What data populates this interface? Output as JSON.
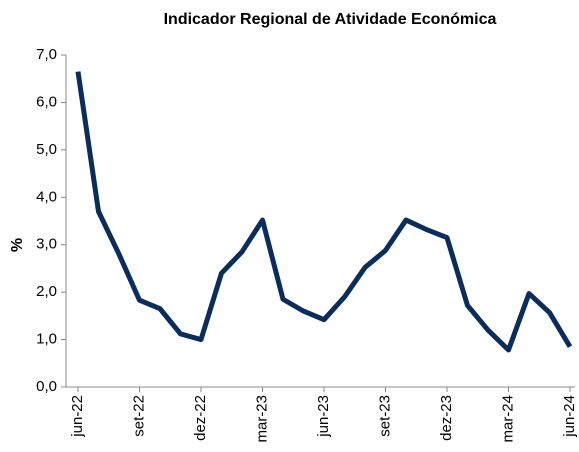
{
  "chart_data": {
    "type": "line",
    "title": "Indicador Regional de Atividade Económica",
    "y_label": "%",
    "categories": [
      "jun-22",
      null,
      null,
      "set-22",
      null,
      null,
      "dez-22",
      null,
      null,
      "mar-23",
      null,
      null,
      "jun-23",
      null,
      null,
      "set-23",
      null,
      null,
      "dez-23",
      null,
      null,
      "mar-24",
      null,
      null,
      "jun-24"
    ],
    "series": [
      {
        "name": "Indicador Regional de Atividade Económica",
        "color": "#0b2d5b",
        "values": [
          6.65,
          3.7,
          2.8,
          1.83,
          1.65,
          1.12,
          1.0,
          2.4,
          2.85,
          3.52,
          1.85,
          1.6,
          1.42,
          1.9,
          2.52,
          2.88,
          3.52,
          3.32,
          3.15,
          1.72,
          1.2,
          0.78,
          1.97,
          1.57,
          0.85
        ]
      }
    ],
    "ylim": [
      0,
      7
    ],
    "yticks": [
      {
        "value": 0,
        "label": "0,0"
      },
      {
        "value": 1,
        "label": "1,0"
      },
      {
        "value": 2,
        "label": "2,0"
      },
      {
        "value": 3,
        "label": "3,0"
      },
      {
        "value": 4,
        "label": "4,0"
      },
      {
        "value": 5,
        "label": "5,0"
      },
      {
        "value": 6,
        "label": "6,0"
      },
      {
        "value": 7,
        "label": "7,0"
      }
    ],
    "grid": false
  }
}
